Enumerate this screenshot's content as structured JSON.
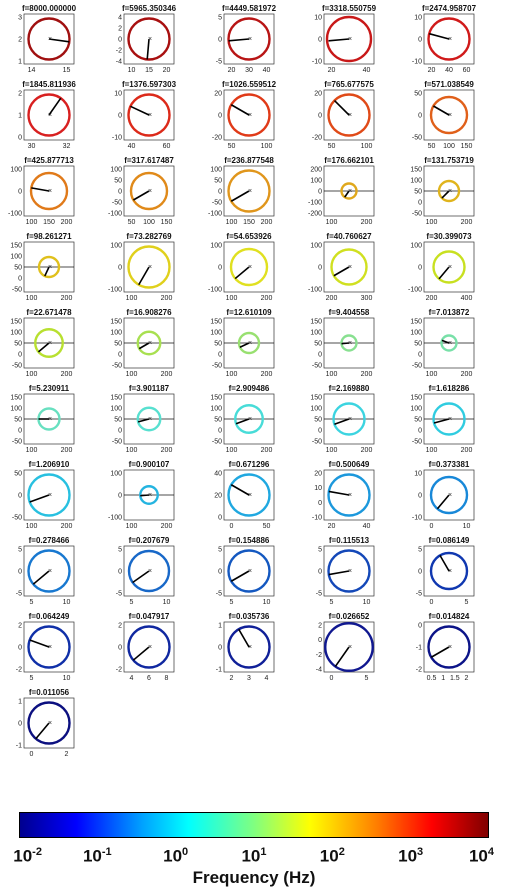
{
  "chart_data": [
    {
      "type": "scatter",
      "title": "f=8000.000000",
      "xticks": [
        "14",
        "15"
      ],
      "yticks": [
        "3",
        "2",
        "1"
      ],
      "circle": {
        "color": "#a01010",
        "r": 0.82
      },
      "vector": {
        "angle": -8,
        "len": 0.82
      },
      "h_axis_line": false
    },
    {
      "type": "scatter",
      "title": "f=5965.350346",
      "xticks": [
        "10",
        "15",
        "20"
      ],
      "yticks": [
        "4",
        "2",
        "0",
        "-2",
        "-4"
      ],
      "circle": {
        "color": "#a81010",
        "r": 0.82
      },
      "vector": {
        "angle": -95,
        "len": 0.82
      },
      "h_axis_line": false
    },
    {
      "type": "scatter",
      "title": "f=4449.581972",
      "xticks": [
        "20",
        "30",
        "40"
      ],
      "yticks": [
        "5",
        "0",
        "-5"
      ],
      "circle": {
        "color": "#b81515",
        "r": 0.82
      },
      "vector": {
        "angle": -175,
        "len": 0.82
      },
      "h_axis_line": false
    },
    {
      "type": "scatter",
      "title": "f=3318.550759",
      "xticks": [
        "20",
        "40"
      ],
      "yticks": [
        "10",
        "0",
        "-10"
      ],
      "circle": {
        "color": "#c81818",
        "r": 0.88
      },
      "vector": {
        "angle": -175,
        "len": 0.82
      },
      "h_axis_line": false
    },
    {
      "type": "scatter",
      "title": "f=2474.958707",
      "xticks": [
        "20",
        "40",
        "60"
      ],
      "yticks": [
        "10",
        "0",
        "-10"
      ],
      "circle": {
        "color": "#d01a1a",
        "r": 0.82
      },
      "vector": {
        "angle": 165,
        "len": 0.82
      },
      "h_axis_line": false
    },
    {
      "type": "scatter",
      "title": "f=1845.811936",
      "xticks": [
        "30",
        "32"
      ],
      "yticks": [
        "2",
        "1",
        "0"
      ],
      "circle": {
        "color": "#d82020",
        "r": 0.82
      },
      "vector": {
        "angle": 55,
        "len": 0.82
      },
      "h_axis_line": false
    },
    {
      "type": "scatter",
      "title": "f=1376.597303",
      "xticks": [
        "40",
        "60"
      ],
      "yticks": [
        "10",
        "0",
        "-10"
      ],
      "circle": {
        "color": "#dc2a1a",
        "r": 0.82
      },
      "vector": {
        "angle": 155,
        "len": 0.82
      },
      "h_axis_line": false
    },
    {
      "type": "scatter",
      "title": "f=1026.559512",
      "xticks": [
        "50",
        "100"
      ],
      "yticks": [
        "20",
        "0",
        "-20"
      ],
      "circle": {
        "color": "#e03a18",
        "r": 0.82
      },
      "vector": {
        "angle": 150,
        "len": 0.82
      },
      "h_axis_line": false
    },
    {
      "type": "scatter",
      "title": "f=765.677575",
      "xticks": [
        "50",
        "100"
      ],
      "yticks": [
        "20",
        "0",
        "-20"
      ],
      "circle": {
        "color": "#e04a18",
        "r": 0.82
      },
      "vector": {
        "angle": 135,
        "len": 0.82
      },
      "h_axis_line": false
    },
    {
      "type": "scatter",
      "title": "f=571.038549",
      "xticks": [
        "50",
        "100",
        "150"
      ],
      "yticks": [
        "50",
        "0",
        "-50"
      ],
      "circle": {
        "color": "#e0601a",
        "r": 0.72
      },
      "vector": {
        "angle": 150,
        "len": 0.72
      },
      "h_axis_line": false
    },
    {
      "type": "scatter",
      "title": "f=425.877713",
      "xticks": [
        "100",
        "150",
        "200"
      ],
      "yticks": [
        "100",
        "0",
        "-100"
      ],
      "circle": {
        "color": "#e07a1a",
        "r": 0.72
      },
      "vector": {
        "angle": 170,
        "len": 0.72
      },
      "h_axis_line": false
    },
    {
      "type": "scatter",
      "title": "f=317.617487",
      "xticks": [
        "50",
        "100",
        "150"
      ],
      "yticks": [
        "100",
        "50",
        "0",
        "-50",
        "-100"
      ],
      "circle": {
        "color": "#e08a1a",
        "r": 0.72
      },
      "vector": {
        "angle": 210,
        "len": 0.72
      },
      "h_axis_line": false
    },
    {
      "type": "scatter",
      "title": "f=236.877548",
      "xticks": [
        "100",
        "150",
        "200"
      ],
      "yticks": [
        "100",
        "50",
        "0",
        "-50",
        "-100"
      ],
      "circle": {
        "color": "#e0961c",
        "r": 0.82
      },
      "vector": {
        "angle": 210,
        "len": 0.82
      },
      "h_axis_line": false
    },
    {
      "type": "scatter",
      "title": "f=176.662101",
      "xticks": [
        "100",
        "200"
      ],
      "yticks": [
        "200",
        "100",
        "0",
        "-100",
        "-200"
      ],
      "circle": {
        "color": "#e0a81c",
        "r": 0.3
      },
      "vector": {
        "angle": 235,
        "len": 0.3
      },
      "h_axis_line": true
    },
    {
      "type": "scatter",
      "title": "f=131.753719",
      "xticks": [
        "100",
        "200"
      ],
      "yticks": [
        "150",
        "100",
        "50",
        "0",
        "-50"
      ],
      "circle": {
        "color": "#e0b41c",
        "r": 0.4
      },
      "vector": {
        "angle": 225,
        "len": 0.4
      },
      "h_axis_line": true
    },
    {
      "type": "scatter",
      "title": "f=98.261271",
      "xticks": [
        "100",
        "200"
      ],
      "yticks": [
        "150",
        "100",
        "50",
        "0",
        "-50"
      ],
      "circle": {
        "color": "#e0c01c",
        "r": 0.4
      },
      "vector": {
        "angle": 245,
        "len": 0.4
      },
      "h_axis_line": true
    },
    {
      "type": "scatter",
      "title": "f=73.282769",
      "xticks": [
        "100",
        "200"
      ],
      "yticks": [
        "100",
        "0",
        "-100"
      ],
      "circle": {
        "color": "#e0d01c",
        "r": 0.82
      },
      "vector": {
        "angle": 240,
        "len": 0.82
      },
      "h_axis_line": false
    },
    {
      "type": "scatter",
      "title": "f=54.653926",
      "xticks": [
        "100",
        "200"
      ],
      "yticks": [
        "100",
        "0",
        "-100"
      ],
      "circle": {
        "color": "#e0e020",
        "r": 0.72
      },
      "vector": {
        "angle": 220,
        "len": 0.72
      },
      "h_axis_line": false
    },
    {
      "type": "scatter",
      "title": "f=40.760627",
      "xticks": [
        "200",
        "300"
      ],
      "yticks": [
        "100",
        "0",
        "-100"
      ],
      "circle": {
        "color": "#d0e020",
        "r": 0.7
      },
      "vector": {
        "angle": 210,
        "len": 0.7
      },
      "h_axis_line": false
    },
    {
      "type": "scatter",
      "title": "f=30.399073",
      "xticks": [
        "200",
        "400"
      ],
      "yticks": [
        "100",
        "0",
        "-100"
      ],
      "circle": {
        "color": "#c8e020",
        "r": 0.62
      },
      "vector": {
        "angle": 230,
        "len": 0.62
      },
      "h_axis_line": false
    },
    {
      "type": "scatter",
      "title": "f=22.671478",
      "xticks": [
        "100",
        "200"
      ],
      "yticks": [
        "150",
        "100",
        "50",
        "0",
        "-50"
      ],
      "circle": {
        "color": "#b8e030",
        "r": 0.55
      },
      "vector": {
        "angle": 220,
        "len": 0.55
      },
      "h_axis_line": true
    },
    {
      "type": "scatter",
      "title": "f=16.908276",
      "xticks": [
        "100",
        "200"
      ],
      "yticks": [
        "150",
        "100",
        "50",
        "0",
        "-50"
      ],
      "circle": {
        "color": "#a8e050",
        "r": 0.45
      },
      "vector": {
        "angle": 210,
        "len": 0.45
      },
      "h_axis_line": true
    },
    {
      "type": "scatter",
      "title": "f=12.610109",
      "xticks": [
        "100",
        "200"
      ],
      "yticks": [
        "150",
        "100",
        "50",
        "0",
        "-50"
      ],
      "circle": {
        "color": "#98e070",
        "r": 0.4
      },
      "vector": {
        "angle": 205,
        "len": 0.4
      },
      "h_axis_line": true
    },
    {
      "type": "scatter",
      "title": "f=9.404558",
      "xticks": [
        "100",
        "200"
      ],
      "yticks": [
        "150",
        "100",
        "50",
        "0",
        "-50"
      ],
      "circle": {
        "color": "#88e090",
        "r": 0.3
      },
      "vector": {
        "angle": 185,
        "len": 0.3
      },
      "h_axis_line": true
    },
    {
      "type": "scatter",
      "title": "f=7.013872",
      "xticks": [
        "100",
        "200"
      ],
      "yticks": [
        "150",
        "100",
        "50",
        "0",
        "-50"
      ],
      "circle": {
        "color": "#78e0a8",
        "r": 0.3
      },
      "vector": {
        "angle": 160,
        "len": 0.3
      },
      "h_axis_line": true
    },
    {
      "type": "scatter",
      "title": "f=5.230911",
      "xticks": [
        "100",
        "200"
      ],
      "yticks": [
        "150",
        "100",
        "50",
        "0",
        "-50"
      ],
      "circle": {
        "color": "#68e0c0",
        "r": 0.42
      },
      "vector": {
        "angle": 180,
        "len": 0.42
      },
      "h_axis_line": true
    },
    {
      "type": "scatter",
      "title": "f=3.901187",
      "xticks": [
        "100",
        "200"
      ],
      "yticks": [
        "150",
        "100",
        "50",
        "0",
        "-50"
      ],
      "circle": {
        "color": "#58e0d0",
        "r": 0.45
      },
      "vector": {
        "angle": 195,
        "len": 0.45
      },
      "h_axis_line": true
    },
    {
      "type": "scatter",
      "title": "f=2.909486",
      "xticks": [
        "100",
        "200"
      ],
      "yticks": [
        "150",
        "100",
        "50",
        "0",
        "-50"
      ],
      "circle": {
        "color": "#48dcd8",
        "r": 0.55
      },
      "vector": {
        "angle": 200,
        "len": 0.55
      },
      "h_axis_line": true
    },
    {
      "type": "scatter",
      "title": "f=2.169880",
      "xticks": [
        "100",
        "200"
      ],
      "yticks": [
        "150",
        "100",
        "50",
        "0",
        "-50"
      ],
      "circle": {
        "color": "#3cd4e0",
        "r": 0.62
      },
      "vector": {
        "angle": 200,
        "len": 0.62
      },
      "h_axis_line": true
    },
    {
      "type": "scatter",
      "title": "f=1.618286",
      "xticks": [
        "100",
        "200"
      ],
      "yticks": [
        "150",
        "100",
        "50",
        "0",
        "-50"
      ],
      "circle": {
        "color": "#30cce0",
        "r": 0.62
      },
      "vector": {
        "angle": 195,
        "len": 0.62
      },
      "h_axis_line": true
    },
    {
      "type": "scatter",
      "title": "f=1.206910",
      "xticks": [
        "100",
        "200"
      ],
      "yticks": [
        "50",
        "0",
        "-50"
      ],
      "circle": {
        "color": "#28c0e0",
        "r": 0.82
      },
      "vector": {
        "angle": 200,
        "len": 0.82
      },
      "h_axis_line": false
    },
    {
      "type": "scatter",
      "title": "f=0.900107",
      "xticks": [
        "100",
        "200"
      ],
      "yticks": [
        "100",
        "0",
        "-100"
      ],
      "circle": {
        "color": "#24b4e0",
        "r": 0.35
      },
      "vector": {
        "angle": 185,
        "len": 0.35
      },
      "h_axis_line": true
    },
    {
      "type": "scatter",
      "title": "f=0.671296",
      "xticks": [
        "0",
        "50"
      ],
      "yticks": [
        "40",
        "20",
        "0"
      ],
      "circle": {
        "color": "#20a8e0",
        "r": 0.82
      },
      "vector": {
        "angle": 150,
        "len": 0.82
      },
      "h_axis_line": false
    },
    {
      "type": "scatter",
      "title": "f=0.500649",
      "xticks": [
        "20",
        "40"
      ],
      "yticks": [
        "20",
        "10",
        "0",
        "-10"
      ],
      "circle": {
        "color": "#1c98dc",
        "r": 0.82
      },
      "vector": {
        "angle": 170,
        "len": 0.82
      },
      "h_axis_line": false
    },
    {
      "type": "scatter",
      "title": "f=0.373381",
      "xticks": [
        "0",
        "10"
      ],
      "yticks": [
        "10",
        "0",
        "-10"
      ],
      "circle": {
        "color": "#1888d8",
        "r": 0.72
      },
      "vector": {
        "angle": 230,
        "len": 0.72
      },
      "h_axis_line": false
    },
    {
      "type": "scatter",
      "title": "f=0.278466",
      "xticks": [
        "5",
        "10"
      ],
      "yticks": [
        "5",
        "0",
        "-5"
      ],
      "circle": {
        "color": "#1878d0",
        "r": 0.82
      },
      "vector": {
        "angle": 220,
        "len": 0.82
      },
      "h_axis_line": false
    },
    {
      "type": "scatter",
      "title": "f=0.207679",
      "xticks": [
        "5",
        "10"
      ],
      "yticks": [
        "5",
        "0",
        "-5"
      ],
      "circle": {
        "color": "#1868c8",
        "r": 0.8
      },
      "vector": {
        "angle": 215,
        "len": 0.8
      },
      "h_axis_line": false
    },
    {
      "type": "scatter",
      "title": "f=0.154886",
      "xticks": [
        "5",
        "10"
      ],
      "yticks": [
        "5",
        "0",
        "-5"
      ],
      "circle": {
        "color": "#1458c0",
        "r": 0.82
      },
      "vector": {
        "angle": 210,
        "len": 0.82
      },
      "h_axis_line": false
    },
    {
      "type": "scatter",
      "title": "f=0.115513",
      "xticks": [
        "5",
        "10"
      ],
      "yticks": [
        "5",
        "0",
        "-5"
      ],
      "circle": {
        "color": "#1448b8",
        "r": 0.82
      },
      "vector": {
        "angle": 190,
        "len": 0.82
      },
      "h_axis_line": false
    },
    {
      "type": "scatter",
      "title": "f=0.086149",
      "xticks": [
        "0",
        "5"
      ],
      "yticks": [
        "5",
        "0",
        "-5"
      ],
      "circle": {
        "color": "#1038b0",
        "r": 0.72
      },
      "vector": {
        "angle": 120,
        "len": 0.72
      },
      "h_axis_line": false
    },
    {
      "type": "scatter",
      "title": "f=0.064249",
      "xticks": [
        "5",
        "10"
      ],
      "yticks": [
        "2",
        "0",
        "-2"
      ],
      "circle": {
        "color": "#1030a8",
        "r": 0.82
      },
      "vector": {
        "angle": 160,
        "len": 0.82
      },
      "h_axis_line": false
    },
    {
      "type": "scatter",
      "title": "f=0.047917",
      "xticks": [
        "4",
        "6",
        "8"
      ],
      "yticks": [
        "2",
        "0",
        "-2"
      ],
      "circle": {
        "color": "#1028a0",
        "r": 0.82
      },
      "vector": {
        "angle": 220,
        "len": 0.82
      },
      "h_axis_line": false
    },
    {
      "type": "scatter",
      "title": "f=0.035736",
      "xticks": [
        "2",
        "3",
        "4"
      ],
      "yticks": [
        "1",
        "0",
        "-1"
      ],
      "circle": {
        "color": "#102098",
        "r": 0.82
      },
      "vector": {
        "angle": 120,
        "len": 0.82
      },
      "h_axis_line": false
    },
    {
      "type": "scatter",
      "title": "f=0.026652",
      "xticks": [
        "0",
        "5"
      ],
      "yticks": [
        "2",
        "0",
        "-2",
        "-4"
      ],
      "circle": {
        "color": "#101890",
        "r": 0.95
      },
      "vector": {
        "angle": 235,
        "len": 0.95
      },
      "h_axis_line": false
    },
    {
      "type": "scatter",
      "title": "f=0.014824",
      "xticks": [
        "0.5",
        "1",
        "1.5",
        "2"
      ],
      "yticks": [
        "0",
        "-1",
        "-2"
      ],
      "circle": {
        "color": "#0c1488",
        "r": 0.82
      },
      "vector": {
        "angle": 210,
        "len": 0.82
      },
      "h_axis_line": false
    },
    {
      "type": "scatter",
      "title": "f=0.011056",
      "xticks": [
        "0",
        "2"
      ],
      "yticks": [
        "1",
        "0",
        "-1"
      ],
      "circle": {
        "color": "#0c1080",
        "r": 0.82
      },
      "vector": {
        "angle": 230,
        "len": 0.82
      },
      "h_axis_line": false
    }
  ],
  "colorbar": {
    "labels": [
      {
        "base": "10",
        "exp": "-2"
      },
      {
        "base": "10",
        "exp": "-1"
      },
      {
        "base": "10",
        "exp": "0"
      },
      {
        "base": "10",
        "exp": "1"
      },
      {
        "base": "10",
        "exp": "2"
      },
      {
        "base": "10",
        "exp": "3"
      },
      {
        "base": "10",
        "exp": "4"
      }
    ],
    "title": "Frequency (Hz)"
  }
}
